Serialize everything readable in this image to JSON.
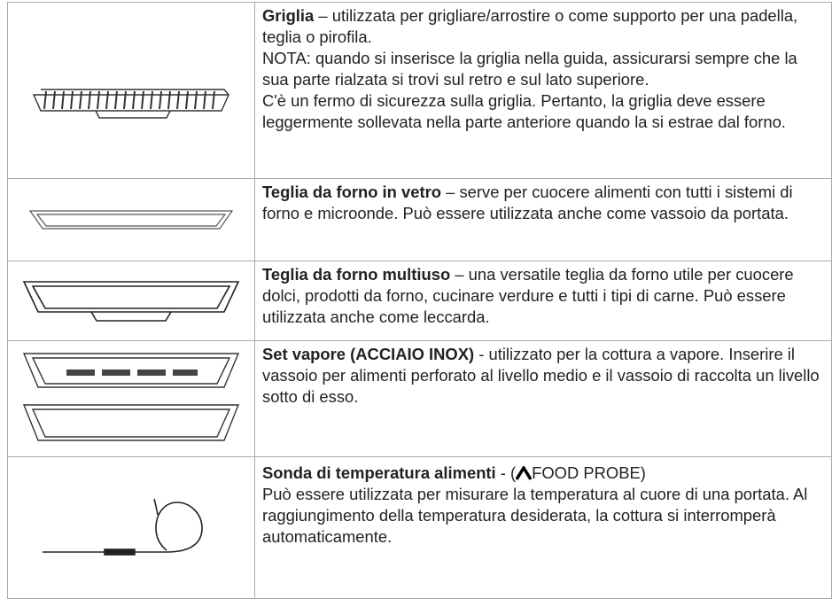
{
  "rows": [
    {
      "title": "Griglia",
      "text": "– utilizzata per grigliare/arrostire o come supporto per una padella, teglia o pirofila.",
      "notes": [
        "NOTA: quando si inserisce la griglia nella guida, assicurarsi sempre che la sua parte rialzata si trovi sul retro e sul lato superiore.",
        "C'è un fermo di sicurezza sulla griglia. Pertanto, la griglia deve essere leggermente sollevata nella parte anteriore quando la si estrae dal forno."
      ]
    },
    {
      "title": "Teglia da forno in vetro",
      "text": "– serve per cuocere alimenti con tutti i sistemi di forno e microonde. Può essere utilizzata anche come vassoio da portata."
    },
    {
      "title": "Teglia da forno multiuso",
      "text": "– una versatile teglia da forno utile per cuocere dolci, prodotti da forno, cucinare verdure e tutti i tipi di carne. Può essere utilizzata anche come leccarda."
    },
    {
      "title": "Set vapore (ACCIAIO INOX)",
      "text": "- utilizzato per la cottura a vapore. Inserire il vassoio per alimenti perforato al livello medio e il vassoio di raccolta un livello sotto di esso."
    },
    {
      "title": "Sonda di temperatura alimenti",
      "text": "- (",
      "label": "FOOD PROBE)",
      "notes": [
        "Può essere utilizzata per misurare la temperatura al cuore di una portata. Al raggiungimento della temperatura desiderata, la cottura si interromperà automaticamente."
      ]
    }
  ]
}
